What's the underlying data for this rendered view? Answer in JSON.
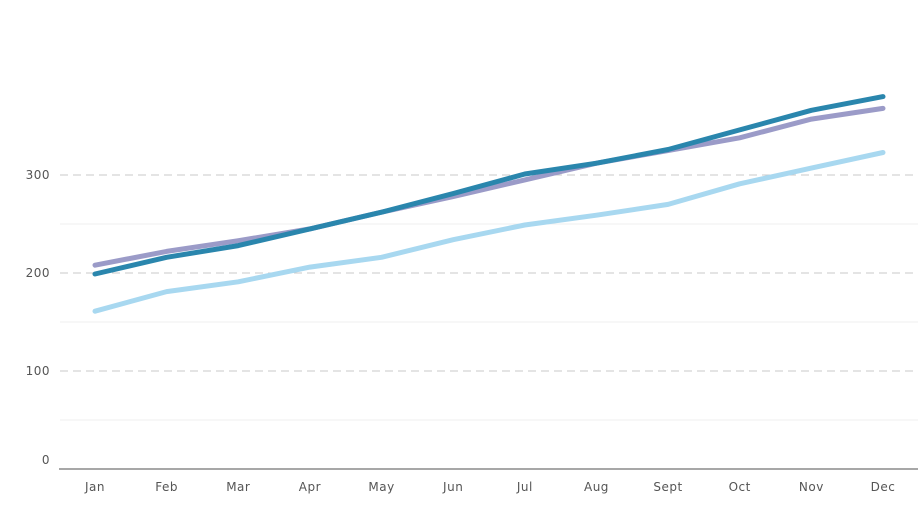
{
  "chart_data": {
    "type": "line",
    "title": "",
    "xlabel": "",
    "ylabel": "",
    "categories": [
      "Jan",
      "Feb",
      "Mar",
      "Apr",
      "May",
      "Jun",
      "Jul",
      "Aug",
      "Sept",
      "Oct",
      "Nov",
      "Dec"
    ],
    "yticks": [
      0,
      100,
      200,
      300
    ],
    "ylim": [
      0,
      410
    ],
    "grid": true,
    "series": [
      {
        "color": "#a8d8f0",
        "values": [
          161,
          181,
          191,
          206,
          216,
          234,
          249,
          259,
          270,
          291,
          307,
          323
        ]
      },
      {
        "color": "#9b9bc8",
        "values": [
          208,
          222,
          233,
          245,
          262,
          278,
          295,
          312,
          325,
          338,
          357,
          368
        ]
      },
      {
        "color": "#2a86ad",
        "values": [
          199,
          216,
          228,
          245,
          262,
          281,
          301,
          312,
          326,
          346,
          366,
          380
        ]
      }
    ]
  }
}
